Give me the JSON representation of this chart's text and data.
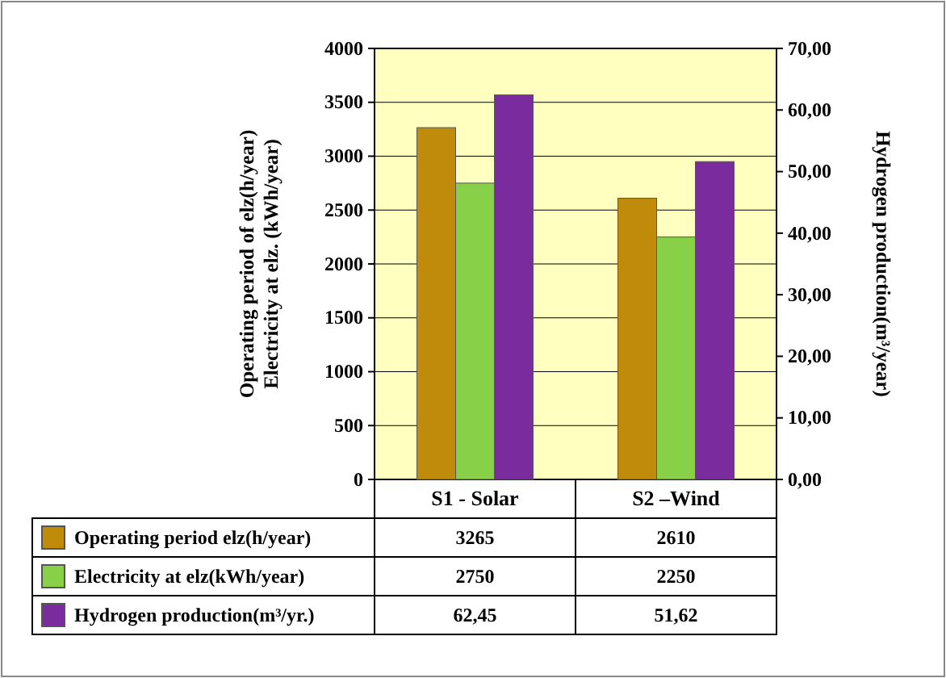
{
  "chart_data": {
    "type": "bar",
    "categories": [
      "S1 - Solar",
      "S2 –Wind"
    ],
    "ylabel": "Operating period of elz(h/year)\nElectricity  at elz. (kWh/year)",
    "y2label": "Hydrogen production(m³/year)",
    "ylim": [
      0,
      4000
    ],
    "yticks": [
      0,
      500,
      1000,
      1500,
      2000,
      2500,
      3000,
      3500,
      4000
    ],
    "y2lim": [
      0,
      70
    ],
    "y2ticks": [
      {
        "value": 0,
        "label": "0,00"
      },
      {
        "value": 10,
        "label": "10,00"
      },
      {
        "value": 20,
        "label": "20,00"
      },
      {
        "value": 30,
        "label": "30,00"
      },
      {
        "value": 40,
        "label": "40,00"
      },
      {
        "value": 50,
        "label": "50,00"
      },
      {
        "value": 60,
        "label": "60,00"
      },
      {
        "value": 70,
        "label": "70,00"
      }
    ],
    "grid": "y",
    "legend": "bottom",
    "series": [
      {
        "name": "Operating period elz(h/year)",
        "color": "#c08a0a",
        "values": [
          3265,
          2610
        ],
        "value_labels": [
          "3265",
          "2610"
        ]
      },
      {
        "name": "Electricity at elz(kWh/year)",
        "color": "#88d048",
        "values": [
          2750,
          2250
        ],
        "value_labels": [
          "2750",
          "2250"
        ]
      },
      {
        "name": "Hydrogen production(m³/yr.)",
        "color": "#7a2c9e",
        "values": [
          62.45,
          51.62
        ],
        "value_labels": [
          "62,45",
          "51,62"
        ],
        "axis": "y2"
      }
    ]
  }
}
